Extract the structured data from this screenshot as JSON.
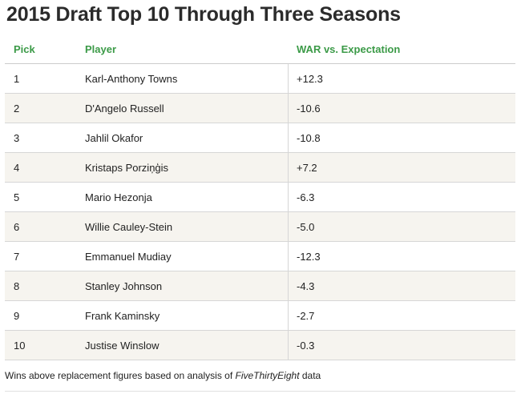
{
  "title": "2015 Draft Top 10 Through Three Seasons",
  "table": {
    "headers": {
      "pick": "Pick",
      "player": "Player",
      "war": "WAR vs. Expectation"
    },
    "rows": [
      {
        "pick": "1",
        "player": "Karl-Anthony Towns",
        "war": "+12.3"
      },
      {
        "pick": "2",
        "player": "D'Angelo Russell",
        "war": "-10.6"
      },
      {
        "pick": "3",
        "player": "Jahlil Okafor",
        "war": "-10.8"
      },
      {
        "pick": "4",
        "player": "Kristaps Porziņģis",
        "war": "+7.2"
      },
      {
        "pick": "5",
        "player": "Mario Hezonja",
        "war": "-6.3"
      },
      {
        "pick": "6",
        "player": "Willie Cauley-Stein",
        "war": "-5.0"
      },
      {
        "pick": "7",
        "player": "Emmanuel Mudiay",
        "war": "-12.3"
      },
      {
        "pick": "8",
        "player": "Stanley Johnson",
        "war": "-4.3"
      },
      {
        "pick": "9",
        "player": "Frank Kaminsky",
        "war": "-2.7"
      },
      {
        "pick": "10",
        "player": "Justise Winslow",
        "war": "-0.3"
      }
    ]
  },
  "footnote": {
    "prefix": "Wins above replacement figures based on analysis of ",
    "source": "FiveThirtyEight",
    "suffix": " data"
  },
  "colors": {
    "header_text": "#3b9a47",
    "alt_row": "#f6f4ef"
  }
}
